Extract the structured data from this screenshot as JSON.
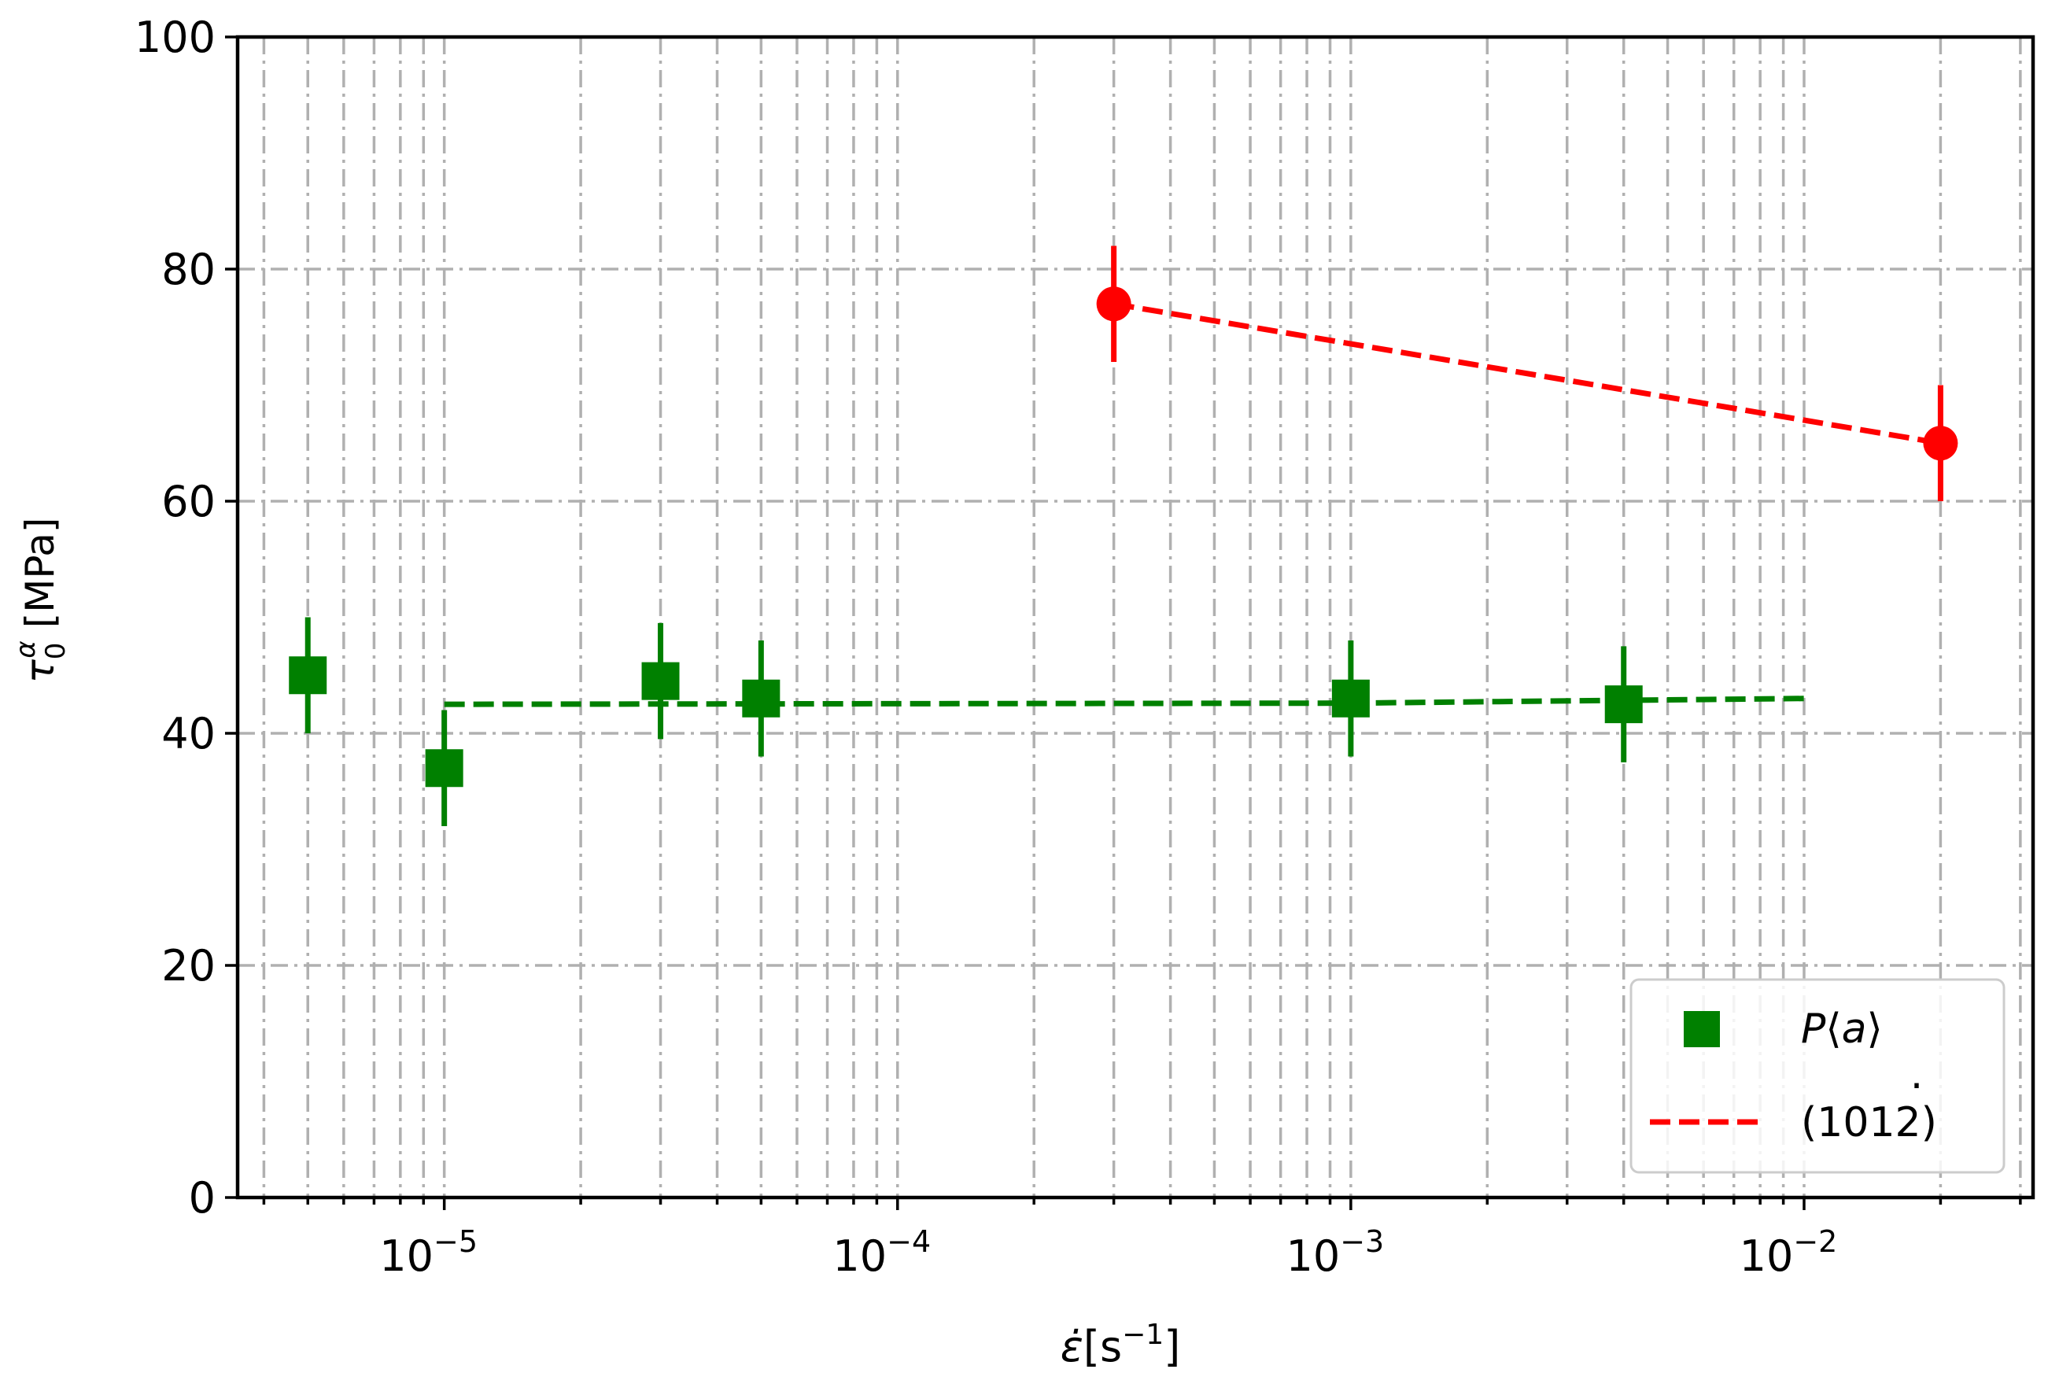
{
  "chart_data": {
    "type": "scatter",
    "xscale": "log",
    "xlim": [
      3.5e-06,
      0.032
    ],
    "ylim": [
      0,
      100
    ],
    "grid": true,
    "legend_position": "lower right",
    "xlabel": "ε̇[s⁻¹]",
    "ylabel": "τ₀ᵅ [MPa]",
    "ylabel_parts": {
      "symbol": "τ",
      "subscript": "0",
      "superscript": "α",
      "unit": " [MPa]"
    },
    "xlabel_parts": {
      "symbol": "ε̇",
      "unit_open": "[s",
      "unit_sup": "−1",
      "unit_close": "]"
    },
    "x_tick_values": [
      1e-05,
      0.0001,
      0.001,
      0.01
    ],
    "x_tick_labels": [
      {
        "base": "10",
        "exp": "−5"
      },
      {
        "base": "10",
        "exp": "−4"
      },
      {
        "base": "10",
        "exp": "−3"
      },
      {
        "base": "10",
        "exp": "−2"
      }
    ],
    "y_ticks": [
      0,
      20,
      40,
      60,
      80,
      100
    ],
    "y_tick_labels": [
      "0",
      "20",
      "40",
      "60",
      "80",
      "100"
    ],
    "series": [
      {
        "name": "P⟨a⟩",
        "color": "#008000",
        "marker": "square",
        "points": [
          {
            "x": 5e-06,
            "y": 45,
            "err": 5
          },
          {
            "x": 1e-05,
            "y": 37,
            "err": 5
          },
          {
            "x": 3e-05,
            "y": 44.5,
            "err": 5
          },
          {
            "x": 5e-05,
            "y": 43,
            "err": 5
          },
          {
            "x": 0.001,
            "y": 43,
            "err": 5
          },
          {
            "x": 0.004,
            "y": 42.5,
            "err": 5
          }
        ],
        "fit_line": {
          "style": "dashed",
          "points": [
            [
              1e-05,
              42.5
            ],
            [
              0.001,
              42.6
            ],
            [
              0.01,
              43
            ]
          ]
        }
      },
      {
        "name": "(1012̇)",
        "color": "#ff0000",
        "marker": "circle",
        "points": [
          {
            "x": 0.0003,
            "y": 77,
            "err": 5
          },
          {
            "x": 0.02,
            "y": 65,
            "err": 5
          }
        ],
        "fit_line": {
          "style": "dashed",
          "points": [
            [
              0.0003,
              77
            ],
            [
              0.02,
              65
            ]
          ]
        }
      }
    ],
    "legend": [
      {
        "label": "P⟨a⟩",
        "label_text": "P",
        "label_arg": "a",
        "marker": "square",
        "color": "#008000"
      },
      {
        "label": "(1012̇)",
        "label_text": "(1012)",
        "marker": "dashed-line",
        "color": "#ff0000"
      }
    ]
  }
}
